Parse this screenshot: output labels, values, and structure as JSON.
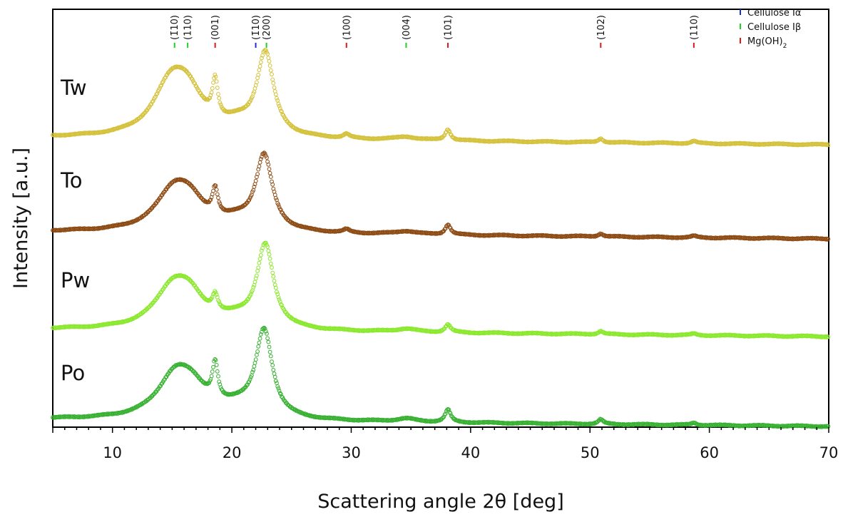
{
  "chart_data": {
    "type": "scatter",
    "xlabel": "Scattering angle 2θ [deg]",
    "ylabel": "Intensity [a.u.]",
    "xlim": [
      5,
      70
    ],
    "xticks": [
      10,
      20,
      30,
      40,
      50,
      60,
      70
    ],
    "y_ticks_shown": false,
    "grid": false,
    "legend_position": "top-right",
    "legend": [
      {
        "label": "Cellulose Iα",
        "color": "#1a2fd0"
      },
      {
        "label": "Cellulose Iβ",
        "color": "#22d022"
      },
      {
        "label": "Mg(OH)",
        "subscript": "2",
        "color": "#e01818"
      }
    ],
    "reference_peaks": [
      {
        "label": "(1̄10)",
        "x": 15.2,
        "phase": "Cellulose Iβ"
      },
      {
        "label": "(110)",
        "x": 16.3,
        "phase": "Cellulose Iβ"
      },
      {
        "label": "(001)",
        "x": 18.6,
        "phase": "Mg(OH)2"
      },
      {
        "label": "(1̄10)",
        "x": 22.0,
        "phase": "Cellulose Iα"
      },
      {
        "label": "(200)",
        "x": 22.9,
        "phase": "Cellulose Iβ"
      },
      {
        "label": "(100)",
        "x": 29.6,
        "phase": "Mg(OH)2"
      },
      {
        "label": "(004)",
        "x": 34.6,
        "phase": "Cellulose Iβ"
      },
      {
        "label": "(101)",
        "x": 38.1,
        "phase": "Mg(OH)2"
      },
      {
        "label": "(102)",
        "x": 50.9,
        "phase": "Mg(OH)2"
      },
      {
        "label": "(110)",
        "x": 58.7,
        "phase": "Mg(OH)2"
      }
    ],
    "series": [
      {
        "name": "Tw",
        "color": "#d4c13a",
        "baseline_start": 1.3,
        "baseline_end": 1.0,
        "peaks": [
          {
            "x": 14.9,
            "height": 0.62,
            "width": 1.8
          },
          {
            "x": 16.3,
            "height": 0.42,
            "width": 1.6
          },
          {
            "x": 18.6,
            "height": 0.48,
            "width": 0.28
          },
          {
            "x": 20.5,
            "height": 0.12,
            "width": 1.5
          },
          {
            "x": 22.8,
            "height": 1.05,
            "width": 0.85
          },
          {
            "x": 29.6,
            "height": 0.05,
            "width": 0.3
          },
          {
            "x": 34.6,
            "height": 0.04,
            "width": 1.0
          },
          {
            "x": 38.1,
            "height": 0.14,
            "width": 0.28
          },
          {
            "x": 50.9,
            "height": 0.05,
            "width": 0.25
          },
          {
            "x": 58.7,
            "height": 0.03,
            "width": 0.25
          }
        ]
      },
      {
        "name": "To",
        "color": "#8c4a12",
        "baseline_start": 0.0,
        "baseline_end": 0.0,
        "peaks": [
          {
            "x": 15.1,
            "height": 0.48,
            "width": 1.8
          },
          {
            "x": 16.5,
            "height": 0.28,
            "width": 1.6
          },
          {
            "x": 18.6,
            "height": 0.34,
            "width": 0.28
          },
          {
            "x": 20.5,
            "height": 0.1,
            "width": 1.5
          },
          {
            "x": 22.7,
            "height": 0.95,
            "width": 0.85
          },
          {
            "x": 29.6,
            "height": 0.04,
            "width": 0.3
          },
          {
            "x": 34.6,
            "height": 0.04,
            "width": 1.0
          },
          {
            "x": 38.1,
            "height": 0.13,
            "width": 0.28
          },
          {
            "x": 50.9,
            "height": 0.04,
            "width": 0.25
          },
          {
            "x": 58.7,
            "height": 0.02,
            "width": 0.25
          }
        ]
      },
      {
        "name": "Pw",
        "color": "#8ae82c",
        "baseline_start": 0.0,
        "baseline_end": 0.0,
        "peaks": [
          {
            "x": 15.0,
            "height": 0.48,
            "width": 1.8
          },
          {
            "x": 16.5,
            "height": 0.32,
            "width": 1.6
          },
          {
            "x": 18.6,
            "height": 0.21,
            "width": 0.28
          },
          {
            "x": 20.5,
            "height": 0.1,
            "width": 1.5
          },
          {
            "x": 22.8,
            "height": 1.05,
            "width": 0.85
          },
          {
            "x": 34.6,
            "height": 0.04,
            "width": 1.0
          },
          {
            "x": 38.1,
            "height": 0.1,
            "width": 0.28
          },
          {
            "x": 50.9,
            "height": 0.04,
            "width": 0.25
          },
          {
            "x": 58.7,
            "height": 0.02,
            "width": 0.25
          }
        ]
      },
      {
        "name": "Po",
        "color": "#36b030",
        "baseline_start": 0.0,
        "baseline_end": 0.0,
        "peaks": [
          {
            "x": 15.2,
            "height": 0.5,
            "width": 1.8
          },
          {
            "x": 16.7,
            "height": 0.3,
            "width": 1.6
          },
          {
            "x": 18.6,
            "height": 0.46,
            "width": 0.28
          },
          {
            "x": 20.5,
            "height": 0.12,
            "width": 1.5
          },
          {
            "x": 22.7,
            "height": 1.1,
            "width": 0.85
          },
          {
            "x": 34.6,
            "height": 0.04,
            "width": 1.0
          },
          {
            "x": 38.1,
            "height": 0.16,
            "width": 0.28
          },
          {
            "x": 50.9,
            "height": 0.06,
            "width": 0.25
          },
          {
            "x": 58.7,
            "height": 0.03,
            "width": 0.25
          }
        ]
      }
    ]
  }
}
